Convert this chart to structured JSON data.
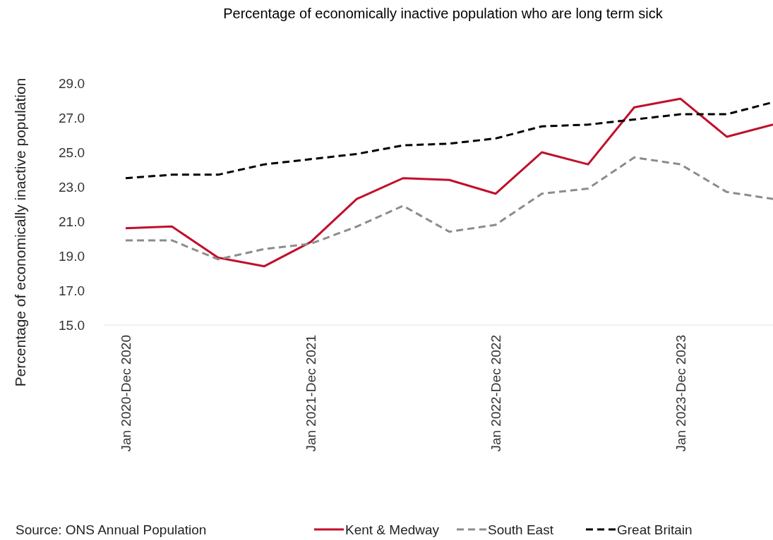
{
  "chart_data": {
    "type": "line",
    "title": "Percentage of economically inactive population who are long term sick",
    "ylabel": "Percentage of economically inactive population",
    "categories": [
      "Jan 2020-Dec 2020",
      null,
      null,
      null,
      "Jan 2021-Dec 2021",
      null,
      null,
      null,
      "Jan 2022-Dec 2022",
      null,
      null,
      null,
      "Jan 2023-Dec 2023",
      null,
      null
    ],
    "series": [
      {
        "name": "Kent & Medway",
        "color": "#c00f2a",
        "line_style": "solid",
        "values": [
          20.6,
          20.7,
          18.9,
          18.4,
          19.8,
          22.3,
          23.5,
          23.4,
          22.6,
          25.0,
          24.3,
          27.6,
          28.1,
          25.9,
          26.6
        ]
      },
      {
        "name": "South East",
        "color": "#8c8c8c",
        "line_style": "dashed",
        "values": [
          19.9,
          19.9,
          18.8,
          19.4,
          19.7,
          20.7,
          21.9,
          20.4,
          20.8,
          22.6,
          22.9,
          24.7,
          24.3,
          22.7,
          22.3
        ]
      },
      {
        "name": "Great Britain",
        "color": "#000000",
        "line_style": "dashed",
        "values": [
          23.5,
          23.7,
          23.7,
          24.3,
          24.6,
          24.9,
          25.4,
          25.5,
          25.8,
          26.5,
          26.6,
          26.9,
          27.2,
          27.2,
          27.9
        ]
      }
    ],
    "ylim": [
      15,
      29
    ],
    "yticks": [
      {
        "value": 15,
        "label": "15.0"
      },
      {
        "value": 17,
        "label": "17.0"
      },
      {
        "value": 19,
        "label": "19.0"
      },
      {
        "value": 21,
        "label": "21.0"
      },
      {
        "value": 23,
        "label": "23.0"
      },
      {
        "value": 25,
        "label": "25.0"
      },
      {
        "value": 27,
        "label": "27.0"
      },
      {
        "value": 29,
        "label": "29.0"
      }
    ],
    "grid": false,
    "legend": "bottom",
    "annotations": [
      "Source: ONS Annual Population"
    ]
  }
}
